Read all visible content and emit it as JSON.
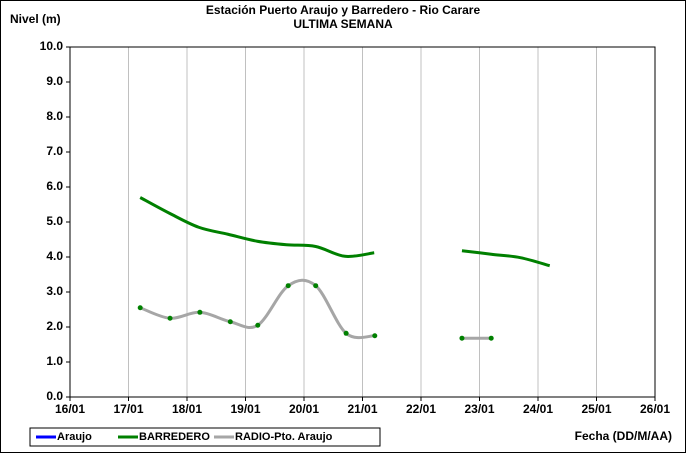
{
  "chart_data": {
    "type": "line",
    "title": "Estación Puerto Araujo y Barredero - Rio Carare",
    "subtitle": "ULTIMA SEMANA",
    "y_label": "Nivel (m)",
    "x_label": "Fecha (DD/M/AA)",
    "xlim": [
      16,
      26
    ],
    "xticks": [
      {
        "value": 16,
        "label": "16/01"
      },
      {
        "value": 17,
        "label": "17/01"
      },
      {
        "value": 18,
        "label": "18/01"
      },
      {
        "value": 19,
        "label": "19/01"
      },
      {
        "value": 20,
        "label": "20/01"
      },
      {
        "value": 21,
        "label": "21/01"
      },
      {
        "value": 22,
        "label": "22/01"
      },
      {
        "value": 23,
        "label": "23/01"
      },
      {
        "value": 24,
        "label": "24/01"
      },
      {
        "value": 25,
        "label": "25/01"
      },
      {
        "value": 26,
        "label": "26/01"
      }
    ],
    "ylim": [
      0,
      10
    ],
    "yticks": [
      {
        "value": 0,
        "label": "0.0"
      },
      {
        "value": 1,
        "label": "1.0"
      },
      {
        "value": 2,
        "label": "2.0"
      },
      {
        "value": 3,
        "label": "3.0"
      },
      {
        "value": 4,
        "label": "4.0"
      },
      {
        "value": 5,
        "label": "5.0"
      },
      {
        "value": 6,
        "label": "6.0"
      },
      {
        "value": 7,
        "label": "7.0"
      },
      {
        "value": 8,
        "label": "8.0"
      },
      {
        "value": 9,
        "label": "9.0"
      },
      {
        "value": 10,
        "label": "10.0"
      }
    ],
    "grid": "x",
    "legend": "bottom",
    "series": [
      {
        "name": "Araujo",
        "color": "#0000ff",
        "markers": false,
        "x": [],
        "values": []
      },
      {
        "name": "BARREDERO",
        "color": "#008000",
        "markers": false,
        "x": [
          17.2,
          17.7,
          18.2,
          18.7,
          19.2,
          19.7,
          20.2,
          20.7,
          21.2,
          21.95,
          22.7,
          23.2,
          23.7,
          24.2
        ],
        "values": [
          5.7,
          5.25,
          4.85,
          4.65,
          4.45,
          4.35,
          4.3,
          4.02,
          4.12,
          null,
          4.18,
          4.08,
          3.98,
          3.75
        ]
      },
      {
        "name": "RADIO-Pto. Araujo",
        "color": "#a6a6a6",
        "marker_color": "#008000",
        "markers": true,
        "x": [
          17.2,
          17.71,
          18.22,
          18.74,
          19.21,
          19.73,
          20.2,
          20.72,
          21.21,
          21.95,
          22.7,
          23.2
        ],
        "values": [
          2.55,
          2.25,
          2.42,
          2.15,
          2.05,
          3.18,
          3.18,
          1.82,
          1.75,
          null,
          1.68,
          1.68
        ]
      }
    ]
  }
}
